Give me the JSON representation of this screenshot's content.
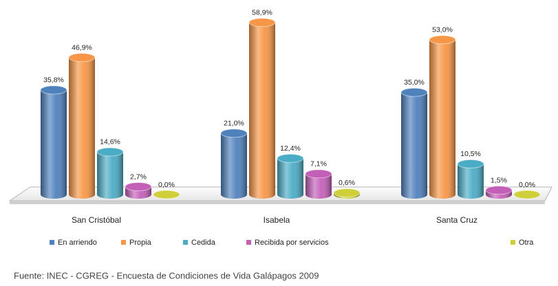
{
  "chart_data": {
    "type": "bar",
    "categories": [
      "San Cristóbal",
      "Isabela",
      "Santa Cruz"
    ],
    "series": [
      {
        "name": "En arriendo",
        "color": "#4f81bd",
        "values": [
          35.8,
          21.0,
          35.0
        ],
        "value_labels": [
          "35,8%",
          "21,0%",
          "35,0%"
        ]
      },
      {
        "name": "Propia",
        "color": "#f79646",
        "values": [
          46.9,
          58.9,
          53.0
        ],
        "value_labels": [
          "46,9%",
          "58,9%",
          "53,0%"
        ]
      },
      {
        "name": "Cedida",
        "color": "#4bacc6",
        "values": [
          14.6,
          12.4,
          10.5
        ],
        "value_labels": [
          "14,6%",
          "12,4%",
          "10,5%"
        ]
      },
      {
        "name": "Recibida por servicios",
        "color": "#c45fb8",
        "values": [
          2.7,
          7.1,
          1.5
        ],
        "value_labels": [
          "2,7%",
          "7,1%",
          "1,5%"
        ]
      },
      {
        "name": "Otra",
        "color": "#cfcf3a",
        "values": [
          0.0,
          0.6,
          0.0
        ],
        "value_labels": [
          "0,0%",
          "0,6%",
          "0,0%"
        ]
      }
    ],
    "source": "Fuente: INEC - CGREG - Encuesta de Condiciones de Vida Galápagos 2009"
  }
}
